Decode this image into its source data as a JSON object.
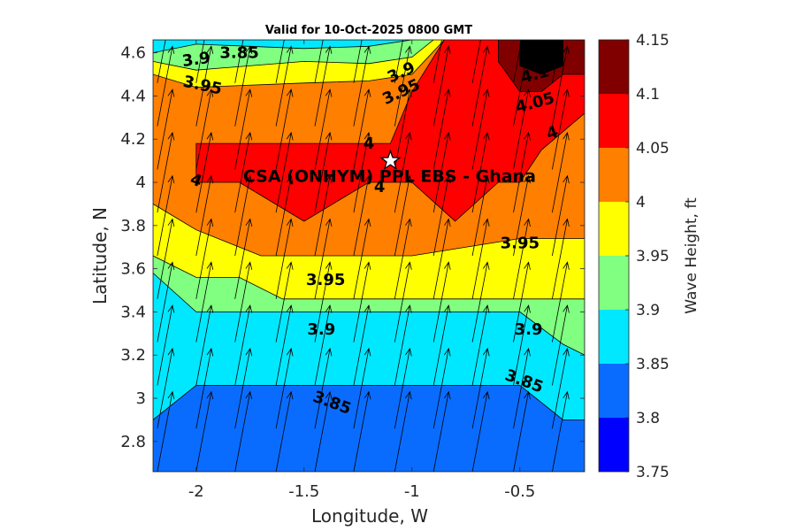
{
  "chart_data": {
    "type": "contour",
    "title": "Valid for 10-Oct-2025 0800 GMT",
    "xlabel": "Longitude, W",
    "ylabel": "Latitude, N",
    "xlim": [
      -2.2,
      -0.2
    ],
    "ylim": [
      2.66,
      4.66
    ],
    "xticks": [
      -2,
      -1.5,
      -1,
      -0.5
    ],
    "xtick_labels": [
      "-2",
      "-1.5",
      "-1",
      "-0.5"
    ],
    "yticks": [
      2.8,
      3,
      3.2,
      3.4,
      3.6,
      3.8,
      4,
      4.2,
      4.4,
      4.6
    ],
    "ytick_labels": [
      "2.8",
      "3",
      "3.2",
      "3.4",
      "3.6",
      "3.8",
      "4",
      "4.2",
      "4.4",
      "4.6"
    ],
    "colorbar": {
      "label": "Wave Height, ft",
      "levels": [
        3.75,
        3.8,
        3.85,
        3.9,
        3.95,
        4,
        4.05,
        4.1,
        4.15
      ],
      "level_labels": [
        "3.75",
        "3.8",
        "3.85",
        "3.9",
        "3.95",
        "4",
        "4.05",
        "4.1",
        "4.15"
      ],
      "colors": [
        "#0000ff",
        "#0a6cff",
        "#00e8ff",
        "#80ff80",
        "#ffff00",
        "#ff7f00",
        "#ff0000",
        "#800000"
      ]
    },
    "bands": [
      {
        "level": 3.8,
        "points": [
          [
            -2.2,
            2.66
          ],
          [
            -0.2,
            2.66
          ],
          [
            -0.2,
            4.66
          ],
          [
            -2.2,
            4.66
          ]
        ]
      },
      {
        "level": 3.85,
        "points": [
          [
            -2.2,
            2.9
          ],
          [
            -2.0,
            3.06
          ],
          [
            -1.5,
            3.06
          ],
          [
            -1.2,
            3.06
          ],
          [
            -1.0,
            3.06
          ],
          [
            -0.8,
            3.06
          ],
          [
            -0.5,
            3.06
          ],
          [
            -0.3,
            2.9
          ],
          [
            -0.2,
            2.9
          ],
          [
            -0.2,
            4.66
          ],
          [
            -1.2,
            4.66
          ],
          [
            -1.5,
            4.66
          ],
          [
            -2.2,
            4.66
          ]
        ]
      },
      {
        "level": 3.9,
        "points": [
          [
            -2.2,
            3.58
          ],
          [
            -2.0,
            3.4
          ],
          [
            -1.5,
            3.4
          ],
          [
            -1.0,
            3.4
          ],
          [
            -0.5,
            3.4
          ],
          [
            -0.3,
            3.25
          ],
          [
            -0.2,
            3.2
          ],
          [
            -0.2,
            4.66
          ],
          [
            -1.0,
            4.66
          ],
          [
            -1.2,
            4.63
          ],
          [
            -1.5,
            4.62
          ],
          [
            -2.0,
            4.64
          ],
          [
            -2.2,
            4.6
          ]
        ]
      },
      {
        "level": 3.95,
        "points": [
          [
            -2.2,
            3.66
          ],
          [
            -2.0,
            3.56
          ],
          [
            -1.8,
            3.56
          ],
          [
            -1.6,
            3.46
          ],
          [
            -1.0,
            3.46
          ],
          [
            -0.5,
            3.46
          ],
          [
            -0.3,
            3.46
          ],
          [
            -0.2,
            3.46
          ],
          [
            -0.2,
            4.66
          ],
          [
            -0.9,
            4.66
          ],
          [
            -1.0,
            4.58
          ],
          [
            -1.2,
            4.55
          ],
          [
            -1.5,
            4.56
          ],
          [
            -2.0,
            4.52
          ],
          [
            -2.2,
            4.56
          ]
        ]
      },
      {
        "level": 4.0,
        "points": [
          [
            -2.2,
            3.9
          ],
          [
            -2.0,
            3.78
          ],
          [
            -1.7,
            3.66
          ],
          [
            -1.5,
            3.66
          ],
          [
            -1.0,
            3.66
          ],
          [
            -0.5,
            3.74
          ],
          [
            -0.3,
            3.74
          ],
          [
            -0.2,
            3.74
          ],
          [
            -0.2,
            4.66
          ],
          [
            -0.85,
            4.66
          ],
          [
            -1.0,
            4.5
          ],
          [
            -1.2,
            4.47
          ],
          [
            -1.5,
            4.46
          ],
          [
            -2.0,
            4.44
          ],
          [
            -2.2,
            4.5
          ]
        ]
      },
      {
        "level": 4.05,
        "points": [
          [
            -2.0,
            4.0
          ],
          [
            -1.8,
            4.0
          ],
          [
            -1.5,
            3.82
          ],
          [
            -1.2,
            4.0
          ],
          [
            -1.0,
            4.0
          ],
          [
            -0.8,
            3.82
          ],
          [
            -0.6,
            4.0
          ],
          [
            -0.5,
            4.0
          ],
          [
            -0.4,
            4.15
          ],
          [
            -0.2,
            4.32
          ],
          [
            -0.2,
            4.66
          ],
          [
            -0.85,
            4.66
          ],
          [
            -1.0,
            4.42
          ],
          [
            -1.1,
            4.18
          ],
          [
            -1.5,
            4.18
          ],
          [
            -2.0,
            4.18
          ]
        ]
      },
      {
        "level": 4.1,
        "points": [
          [
            -0.6,
            4.66
          ],
          [
            -0.6,
            4.56
          ],
          [
            -0.5,
            4.42
          ],
          [
            -0.4,
            4.42
          ],
          [
            -0.3,
            4.5
          ],
          [
            -0.2,
            4.5
          ],
          [
            -0.2,
            4.66
          ]
        ]
      },
      {
        "level": 4.15,
        "points": [
          [
            -0.5,
            4.66
          ],
          [
            -0.5,
            4.54
          ],
          [
            -0.4,
            4.5
          ],
          [
            -0.3,
            4.54
          ],
          [
            -0.3,
            4.66
          ]
        ]
      }
    ],
    "contour_labels": [
      {
        "text": "3.9",
        "x": -2.0,
        "y": 4.57,
        "angle": -8
      },
      {
        "text": "3.85",
        "x": -1.8,
        "y": 4.6,
        "angle": 0
      },
      {
        "text": "3.95",
        "x": -1.97,
        "y": 4.45,
        "angle": 12
      },
      {
        "text": "3.9",
        "x": -1.05,
        "y": 4.51,
        "angle": -25
      },
      {
        "text": "3.95",
        "x": -1.05,
        "y": 4.42,
        "angle": -25
      },
      {
        "text": "4.1",
        "x": -0.43,
        "y": 4.5,
        "angle": -15
      },
      {
        "text": "4.05",
        "x": -0.43,
        "y": 4.37,
        "angle": -15
      },
      {
        "text": "4",
        "x": -0.35,
        "y": 4.23,
        "angle": -20
      },
      {
        "text": "4",
        "x": -1.2,
        "y": 4.18,
        "angle": 0
      },
      {
        "text": "4",
        "x": -1.15,
        "y": 3.98,
        "angle": 0
      },
      {
        "text": "4",
        "x": -2.0,
        "y": 4.01,
        "angle": 20
      },
      {
        "text": "3.95",
        "x": -0.5,
        "y": 3.72,
        "angle": 0
      },
      {
        "text": "3.95",
        "x": -1.4,
        "y": 3.55,
        "angle": 0
      },
      {
        "text": "3.9",
        "x": -1.42,
        "y": 3.32,
        "angle": 0
      },
      {
        "text": "3.9",
        "x": -0.46,
        "y": 3.32,
        "angle": 0
      },
      {
        "text": "3.85",
        "x": -1.37,
        "y": 2.98,
        "angle": 20
      },
      {
        "text": "3.85",
        "x": -0.48,
        "y": 3.08,
        "angle": 20
      }
    ],
    "site": {
      "label": "CSA (ONHYM) PPL EBS  - Ghana",
      "marker": "star-icon",
      "lon": -1.1,
      "lat": 4.1
    },
    "vectors": {
      "description": "wave direction arrows pointing north-northeast",
      "dlon": 0.07,
      "dlat": 0.37,
      "lons": [
        -2.18,
        -2.0,
        -1.82,
        -1.63,
        -1.45,
        -1.27,
        -1.08,
        -0.9,
        -0.72,
        -0.53,
        -0.35
      ],
      "lats": [
        2.66,
        2.86,
        3.06,
        3.26,
        3.46,
        3.66,
        3.86,
        4.06,
        4.26,
        4.46
      ]
    }
  }
}
